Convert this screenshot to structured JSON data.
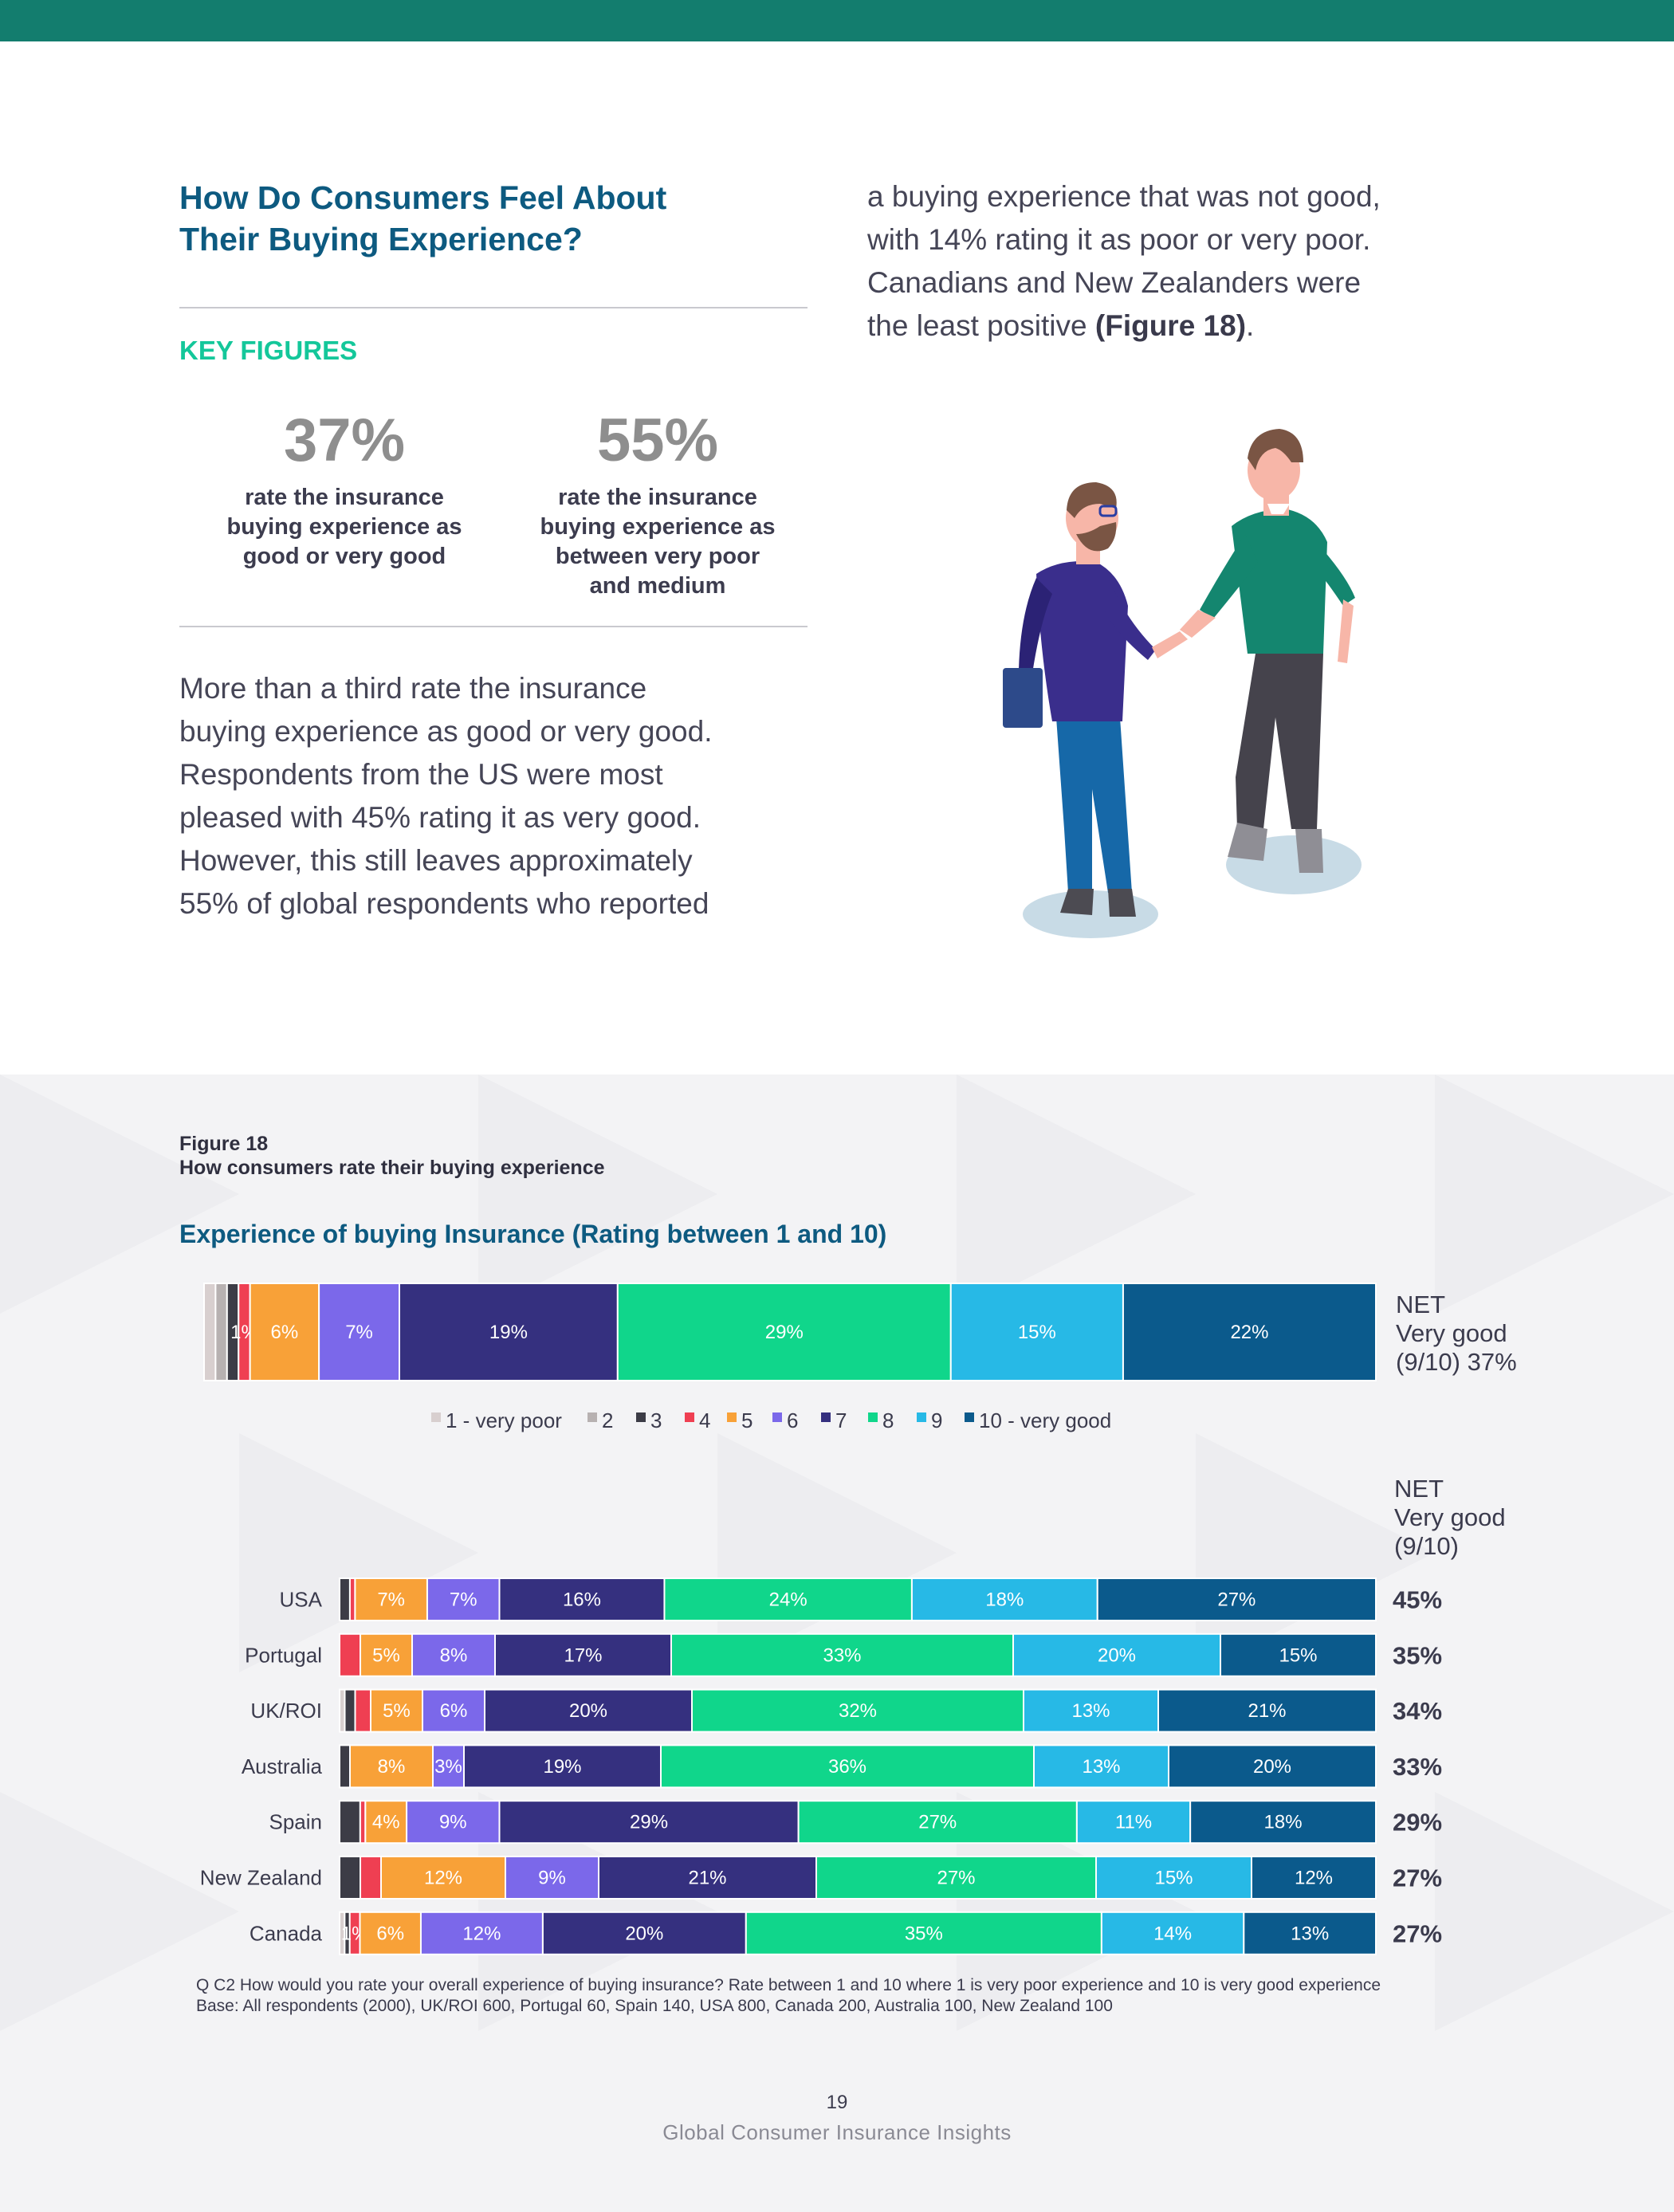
{
  "heading": {
    "line1": "How Do Consumers Feel About",
    "line2": "Their Buying Experience?"
  },
  "key_figures": {
    "label": "KEY FIGURES",
    "items": [
      {
        "value": "37%",
        "line1": "rate the insurance",
        "line2": "buying experience as",
        "line3": "good or very good",
        "line4": ""
      },
      {
        "value": "55%",
        "line1": "rate the insurance",
        "line2": "buying experience as",
        "line3": "between very poor",
        "line4": "and medium"
      }
    ]
  },
  "body_left": {
    "lines": [
      "More than a third rate the insurance",
      "buying experience as good or very good.",
      "Respondents from the US were most",
      "pleased with 45% rating it as very good.",
      "However, this still leaves approximately",
      "55% of global respondents who reported"
    ]
  },
  "body_right": {
    "lines": [
      "a buying experience that was not good,",
      "with 14% rating it as poor or very poor.",
      "Canadians and New Zealanders were"
    ],
    "last_prefix": "the least positive ",
    "last_bold": "(Figure 18)",
    "last_suffix": "."
  },
  "figure": {
    "number": "Figure 18",
    "caption": "How consumers rate their buying experience"
  },
  "chart_title": "Experience of buying Insurance (Rating between 1 and 10)",
  "chart_data": {
    "type": "bar",
    "orientation": "horizontal",
    "stacked": true,
    "title": "Experience of buying Insurance (Rating between 1 and 10)",
    "legend_position": "below-top-bar",
    "colors": [
      "#d8cfcf",
      "#b7b1b1",
      "#3c3c46",
      "#ef3f52",
      "#f8a138",
      "#7b68ea",
      "#35307f",
      "#10d68b",
      "#27b9e6",
      "#0b5a8c"
    ],
    "series_names": [
      "1 - very poor",
      "2",
      "3",
      "4",
      "5",
      "6",
      "7",
      "8",
      "9",
      "10 - very good"
    ],
    "overall": {
      "values": [
        1,
        1,
        1,
        1,
        6,
        7,
        19,
        29,
        15,
        22
      ],
      "labels": [
        "",
        "",
        "",
        "1%",
        "6%",
        "7%",
        "19%",
        "29%",
        "15%",
        "22%"
      ],
      "net_lines": [
        "NET",
        "Very good",
        "(9/10) 37%"
      ]
    },
    "net_header": [
      "NET",
      "Very good",
      "(9/10)"
    ],
    "categories": [
      "USA",
      "Portugal",
      "UK/ROI",
      "Australia",
      "Spain",
      "New Zealand",
      "Canada"
    ],
    "net_values": [
      "45%",
      "35%",
      "34%",
      "33%",
      "29%",
      "27%",
      "27%"
    ],
    "rows": [
      {
        "values": [
          0,
          0,
          1,
          0.5,
          7,
          7,
          16,
          24,
          18,
          27
        ],
        "labels": [
          "",
          "",
          "",
          "",
          "7%",
          "7%",
          "16%",
          "24%",
          "18%",
          "27%"
        ]
      },
      {
        "values": [
          0,
          0,
          0,
          2,
          5,
          8,
          17,
          33,
          20,
          15
        ],
        "labels": [
          "",
          "",
          "",
          "",
          "5%",
          "8%",
          "17%",
          "33%",
          "20%",
          "15%"
        ]
      },
      {
        "values": [
          0.5,
          0,
          1,
          1.5,
          5,
          6,
          20,
          32,
          13,
          21
        ],
        "labels": [
          "",
          "",
          "",
          "",
          "5%",
          "6%",
          "20%",
          "32%",
          "13%",
          "21%"
        ]
      },
      {
        "values": [
          0,
          0,
          1,
          0,
          8,
          3,
          19,
          36,
          13,
          20
        ],
        "labels": [
          "",
          "",
          "",
          "",
          "8%",
          "3%",
          "19%",
          "36%",
          "13%",
          "20%"
        ]
      },
      {
        "values": [
          0,
          0,
          2,
          0.5,
          4,
          9,
          29,
          27,
          11,
          18
        ],
        "labels": [
          "",
          "",
          "",
          "",
          "4%",
          "9%",
          "29%",
          "27%",
          "11%",
          "18%"
        ]
      },
      {
        "values": [
          0,
          0,
          2,
          2,
          12,
          9,
          21,
          27,
          15,
          12
        ],
        "labels": [
          "",
          "",
          "",
          "",
          "12%",
          "9%",
          "21%",
          "27%",
          "15%",
          "12%"
        ]
      },
      {
        "values": [
          0.5,
          0,
          0.5,
          1,
          6,
          12,
          20,
          35,
          14,
          13
        ],
        "labels": [
          "",
          "",
          "",
          "1%",
          "6%",
          "12%",
          "20%",
          "35%",
          "14%",
          "13%"
        ]
      }
    ]
  },
  "footnote": {
    "line1": "Q C2 How would you rate your overall experience of buying insurance? Rate between 1 and 10 where 1 is very poor experience and 10 is very good experience",
    "line2": "Base: All respondents (2000), UK/ROI 600, Portugal 60, Spain 140, USA 800, Canada 200, Australia 100, New Zealand 100"
  },
  "page_number": "19",
  "footer_title": "Global Consumer Insurance Insights"
}
